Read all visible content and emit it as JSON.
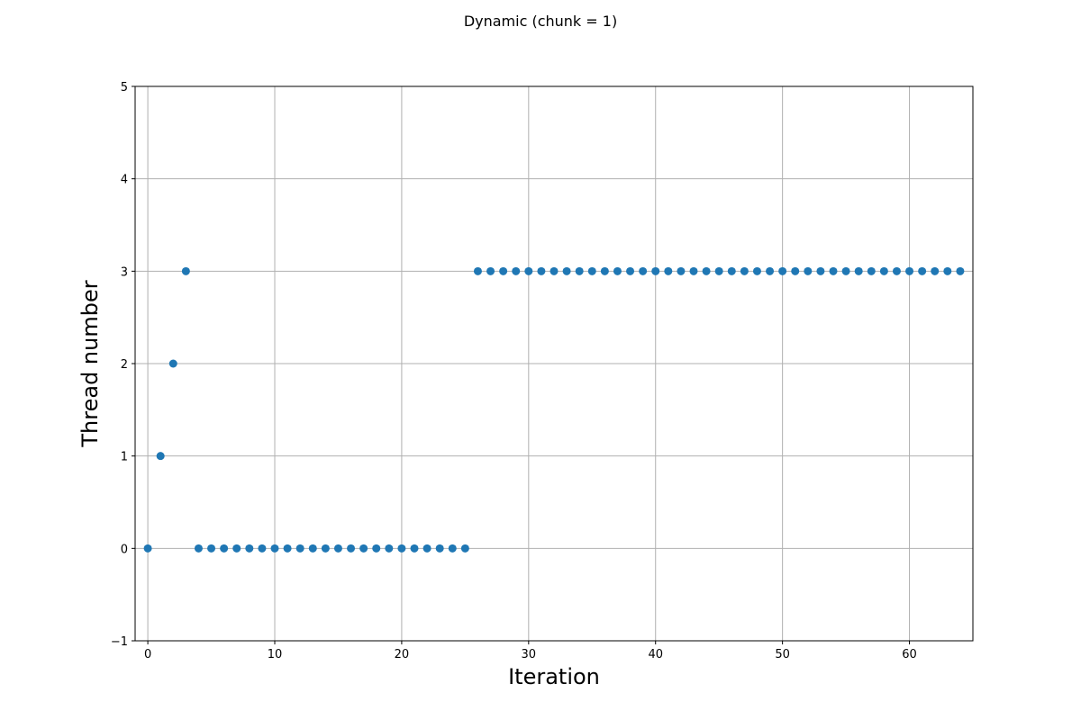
{
  "chart_data": {
    "type": "scatter",
    "title": "Dynamic (chunk = 1)",
    "xlabel": "Iteration",
    "ylabel": "Thread number",
    "xlim": [
      -1,
      65
    ],
    "ylim": [
      -1,
      5
    ],
    "xticks": [
      0,
      10,
      20,
      30,
      40,
      50,
      60
    ],
    "yticks": [
      -1,
      0,
      1,
      2,
      3,
      4,
      5
    ],
    "xtick_labels": [
      "0",
      "10",
      "20",
      "30",
      "40",
      "50",
      "60"
    ],
    "ytick_labels": [
      "−1",
      "0",
      "1",
      "2",
      "3",
      "4",
      "5"
    ],
    "grid": true,
    "color": "#1f77b4",
    "series": [
      {
        "x": [
          0,
          1,
          2,
          3,
          4,
          5,
          6,
          7,
          8,
          9,
          10,
          11,
          12,
          13,
          14,
          15,
          16,
          17,
          18,
          19,
          20,
          21,
          22,
          23,
          24,
          25,
          26,
          27,
          28,
          29,
          30,
          31,
          32,
          33,
          34,
          35,
          36,
          37,
          38,
          39,
          40,
          41,
          42,
          43,
          44,
          45,
          46,
          47,
          48,
          49,
          50,
          51,
          52,
          53,
          54,
          55,
          56,
          57,
          58,
          59,
          60,
          61,
          62,
          63,
          64
        ],
        "y": [
          0,
          1,
          2,
          3,
          0,
          0,
          0,
          0,
          0,
          0,
          0,
          0,
          0,
          0,
          0,
          0,
          0,
          0,
          0,
          0,
          0,
          0,
          0,
          0,
          0,
          0,
          3,
          3,
          3,
          3,
          3,
          3,
          3,
          3,
          3,
          3,
          3,
          3,
          3,
          3,
          3,
          3,
          3,
          3,
          3,
          3,
          3,
          3,
          3,
          3,
          3,
          3,
          3,
          3,
          3,
          3,
          3,
          3,
          3,
          3,
          3,
          3,
          3,
          3,
          3
        ]
      }
    ]
  }
}
